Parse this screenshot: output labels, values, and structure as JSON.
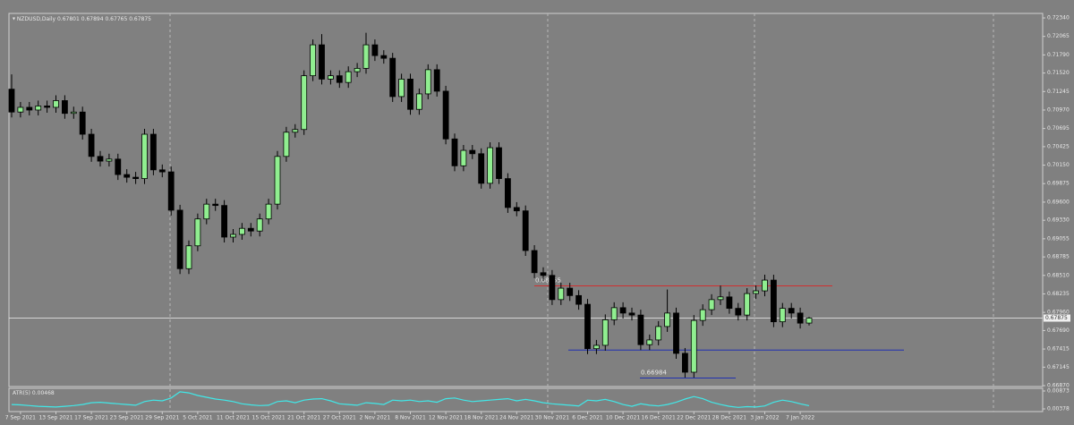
{
  "chart_data": {
    "type": "candlestick",
    "title": "NZDUSD,Daily",
    "categories": [
      null,
      "7 Sep 2021",
      null,
      null,
      null,
      "13 Sep 2021",
      null,
      null,
      null,
      "17 Sep 2021",
      null,
      null,
      null,
      "23 Sep 2021",
      null,
      null,
      null,
      "29 Sep 2021",
      null,
      null,
      null,
      "5 Oct 2021",
      null,
      null,
      null,
      "11 Oct 2021",
      null,
      null,
      null,
      "15 Oct 2021",
      null,
      null,
      null,
      "21 Oct 2021",
      null,
      null,
      null,
      "27 Oct 2021",
      null,
      null,
      null,
      "2 Nov 2021",
      null,
      null,
      null,
      "8 Nov 2021",
      null,
      null,
      null,
      "12 Nov 2021",
      null,
      null,
      null,
      "18 Nov 2021",
      null,
      null,
      null,
      "24 Nov 2021",
      null,
      null,
      null,
      "30 Nov 2021",
      null,
      null,
      null,
      "6 Dec 2021",
      null,
      null,
      null,
      "10 Dec 2021",
      null,
      null,
      null,
      "16 Dec 2021",
      null,
      null,
      null,
      "22 Dec 2021",
      null,
      null,
      null,
      "28 Dec 2021",
      null,
      null,
      null,
      "3 Jan 2022",
      null,
      null,
      null,
      "7 Jan 2022",
      null
    ],
    "open": [
      0.7128,
      0.7094,
      0.7101,
      0.7097,
      0.7103,
      0.7101,
      0.7111,
      0.7092,
      0.7094,
      0.7061,
      0.7028,
      0.7021,
      0.7024,
      0.7001,
      0.6997,
      0.6995,
      0.7061,
      0.7008,
      0.7005,
      0.6948,
      0.6861,
      0.6895,
      0.6935,
      0.6957,
      0.6955,
      0.6908,
      0.6912,
      0.6921,
      0.6917,
      0.6935,
      0.6957,
      0.7028,
      0.7064,
      0.7068,
      0.7148,
      0.7194,
      0.7143,
      0.7148,
      0.7138,
      0.7154,
      0.7159,
      0.7194,
      0.7178,
      0.7174,
      0.7117,
      0.7143,
      0.7098,
      0.7121,
      0.7157,
      0.7125,
      0.7054,
      0.7014,
      0.7037,
      0.7032,
      0.6988,
      0.7041,
      0.6995,
      0.6952,
      0.6947,
      0.6888,
      0.6855,
      0.6851,
      0.6815,
      0.6832,
      0.6821,
      0.6808,
      0.6742,
      0.6747,
      0.6785,
      0.6803,
      0.6795,
      0.6792,
      0.6748,
      0.6755,
      0.6775,
      0.6795,
      0.6735,
      0.6707,
      0.6784,
      0.68,
      0.6815,
      0.6819,
      0.6802,
      0.6792,
      0.6824,
      0.6828,
      0.6844,
      0.6782,
      0.6802,
      0.6795,
      0.67801
    ],
    "high": [
      0.715,
      0.7109,
      0.7109,
      0.7111,
      0.7111,
      0.7119,
      0.7119,
      0.7102,
      0.7102,
      0.7069,
      0.7036,
      0.7032,
      0.7032,
      0.7009,
      0.7005,
      0.7069,
      0.7069,
      0.7016,
      0.7013,
      0.6956,
      0.6903,
      0.6943,
      0.6965,
      0.6965,
      0.6963,
      0.692,
      0.6929,
      0.6929,
      0.6943,
      0.6965,
      0.7036,
      0.7072,
      0.7076,
      0.7156,
      0.7202,
      0.721,
      0.7156,
      0.7156,
      0.7162,
      0.7167,
      0.7212,
      0.7202,
      0.7186,
      0.7182,
      0.7151,
      0.7151,
      0.7129,
      0.7165,
      0.7165,
      0.7133,
      0.7062,
      0.7045,
      0.7045,
      0.704,
      0.7049,
      0.7049,
      0.7003,
      0.696,
      0.6955,
      0.6896,
      0.6863,
      0.6859,
      0.684,
      0.684,
      0.6829,
      0.6816,
      0.6755,
      0.6793,
      0.6811,
      0.6811,
      0.6803,
      0.68,
      0.6763,
      0.6783,
      0.683,
      0.6803,
      0.6743,
      0.6792,
      0.6808,
      0.6823,
      0.6836,
      0.6827,
      0.681,
      0.6832,
      0.6836,
      0.6852,
      0.6852,
      0.681,
      0.681,
      0.6803,
      0.67894
    ],
    "low": [
      0.7086,
      0.7086,
      0.7089,
      0.7089,
      0.7093,
      0.7093,
      0.7084,
      0.7084,
      0.7053,
      0.702,
      0.7013,
      0.7013,
      0.6993,
      0.6989,
      0.6987,
      0.6987,
      0.7,
      0.6997,
      0.694,
      0.6853,
      0.6853,
      0.6887,
      0.6927,
      0.6947,
      0.69,
      0.69,
      0.6904,
      0.6909,
      0.6909,
      0.6927,
      0.6949,
      0.702,
      0.7056,
      0.706,
      0.714,
      0.7135,
      0.7135,
      0.713,
      0.713,
      0.7146,
      0.7151,
      0.717,
      0.7166,
      0.7109,
      0.7109,
      0.709,
      0.709,
      0.7113,
      0.7117,
      0.7046,
      0.7006,
      0.7006,
      0.7024,
      0.698,
      0.698,
      0.6987,
      0.6944,
      0.6939,
      0.688,
      0.6847,
      0.6843,
      0.6807,
      0.6807,
      0.6813,
      0.68,
      0.6734,
      0.6734,
      0.6739,
      0.6777,
      0.6787,
      0.6784,
      0.674,
      0.674,
      0.6747,
      0.6767,
      0.6727,
      0.6699,
      0.6699,
      0.6776,
      0.6792,
      0.6807,
      0.6794,
      0.6784,
      0.6784,
      0.6816,
      0.682,
      0.6774,
      0.6774,
      0.6787,
      0.6772,
      0.67765
    ],
    "close": [
      0.7094,
      0.7101,
      0.7097,
      0.7103,
      0.7101,
      0.7111,
      0.7092,
      0.7094,
      0.7061,
      0.7028,
      0.7021,
      0.7024,
      0.7001,
      0.6997,
      0.6995,
      0.7061,
      0.7008,
      0.7005,
      0.6948,
      0.6861,
      0.6895,
      0.6935,
      0.6957,
      0.6955,
      0.6908,
      0.6912,
      0.6921,
      0.6917,
      0.6935,
      0.6957,
      0.7028,
      0.7064,
      0.7068,
      0.7148,
      0.7194,
      0.7143,
      0.7148,
      0.7138,
      0.7154,
      0.7159,
      0.7194,
      0.7178,
      0.7174,
      0.7117,
      0.7143,
      0.7098,
      0.7121,
      0.7157,
      0.7125,
      0.7054,
      0.7014,
      0.7037,
      0.7032,
      0.6988,
      0.7041,
      0.6995,
      0.6952,
      0.6947,
      0.6888,
      0.6855,
      0.6851,
      0.6815,
      0.6832,
      0.6821,
      0.6808,
      0.6742,
      0.6747,
      0.6785,
      0.6803,
      0.6795,
      0.6792,
      0.6748,
      0.6755,
      0.6775,
      0.6795,
      0.6735,
      0.6707,
      0.6784,
      0.68,
      0.6815,
      0.6819,
      0.6802,
      0.6792,
      0.6824,
      0.6828,
      0.6844,
      0.6782,
      0.6802,
      0.6795,
      0.678,
      0.67875
    ],
    "up_color": "#90ee90",
    "down_color": "#000000",
    "ylim": [
      0.66857,
      0.72407
    ],
    "yticks": [
      {
        "value": 0.7234,
        "label": "0.72340"
      },
      0.72065,
      {
        "value": 0.7179,
        "label": "0.71790"
      },
      {
        "value": 0.7152,
        "label": "0.71520"
      },
      0.71245,
      {
        "value": 0.7097,
        "label": "0.70970"
      },
      0.70695,
      0.70425,
      {
        "value": 0.7015,
        "label": "0.70150"
      },
      0.69875,
      {
        "value": 0.696,
        "label": "0.69600"
      },
      {
        "value": 0.6933,
        "label": "0.69330"
      },
      0.69055,
      0.68785,
      {
        "value": 0.6851,
        "label": "0.68510"
      },
      0.68235,
      {
        "value": 0.6796,
        "label": "0.67960"
      },
      {
        "value": 0.6769,
        "label": "0.67690"
      },
      0.67415,
      0.67145,
      {
        "value": 0.6687,
        "label": "0.66870"
      }
    ],
    "levels": [
      {
        "value": 0.68355,
        "color": "#d03030",
        "show_value": true
      },
      {
        "value": 0.674,
        "color": "#2030b0",
        "show_value": false
      },
      {
        "value": 0.66984,
        "color": "#2030b0",
        "show_value": true
      }
    ],
    "indicator": {
      "type": "line",
      "name": "ATR(5)",
      "color": "#40e8e8",
      "values": [
        0.005,
        0.0049,
        0.0047,
        0.0045,
        0.0044,
        0.0043,
        0.0045,
        0.0047,
        0.005,
        0.0055,
        0.0056,
        0.0054,
        0.0052,
        0.005,
        0.0048,
        0.0058,
        0.0062,
        0.006,
        0.0068,
        0.0085,
        0.0082,
        0.0075,
        0.007,
        0.0065,
        0.0062,
        0.0058,
        0.0052,
        0.0049,
        0.0047,
        0.0048,
        0.0058,
        0.006,
        0.0055,
        0.0062,
        0.0065,
        0.0066,
        0.006,
        0.0052,
        0.005,
        0.0048,
        0.0055,
        0.0053,
        0.005,
        0.0062,
        0.006,
        0.0062,
        0.0058,
        0.006,
        0.0056,
        0.0066,
        0.0068,
        0.0062,
        0.0058,
        0.006,
        0.0062,
        0.0064,
        0.0066,
        0.006,
        0.0064,
        0.006,
        0.0055,
        0.0052,
        0.005,
        0.0048,
        0.0046,
        0.0062,
        0.006,
        0.0064,
        0.0058,
        0.005,
        0.0045,
        0.0052,
        0.0048,
        0.0046,
        0.005,
        0.0056,
        0.0065,
        0.0072,
        0.0066,
        0.0056,
        0.005,
        0.0045,
        0.0042,
        0.0044,
        0.0043,
        0.0046,
        0.0056,
        0.0062,
        0.0058,
        0.0052,
        0.00468
      ],
      "ylim": [
        0.00378,
        0.00873
      ],
      "yticks": [
        0.00873,
        0.00378
      ]
    }
  }
}
